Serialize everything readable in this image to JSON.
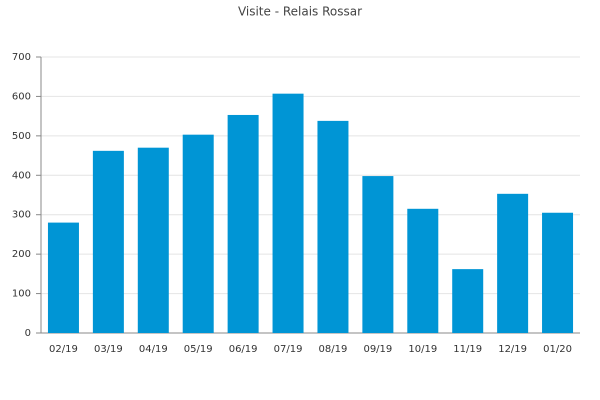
{
  "chart_data": {
    "type": "bar",
    "title": "Visite - Relais Rossar",
    "categories": [
      "02/19",
      "03/19",
      "04/19",
      "05/19",
      "06/19",
      "07/19",
      "08/19",
      "09/19",
      "10/19",
      "11/19",
      "12/19",
      "01/20"
    ],
    "values": [
      280,
      462,
      470,
      503,
      553,
      607,
      538,
      398,
      315,
      162,
      353,
      305
    ],
    "color": "#0095d5",
    "ylim": [
      0,
      700
    ],
    "yticks": [
      0,
      100,
      200,
      300,
      400,
      500,
      600,
      700
    ],
    "grid": true
  }
}
